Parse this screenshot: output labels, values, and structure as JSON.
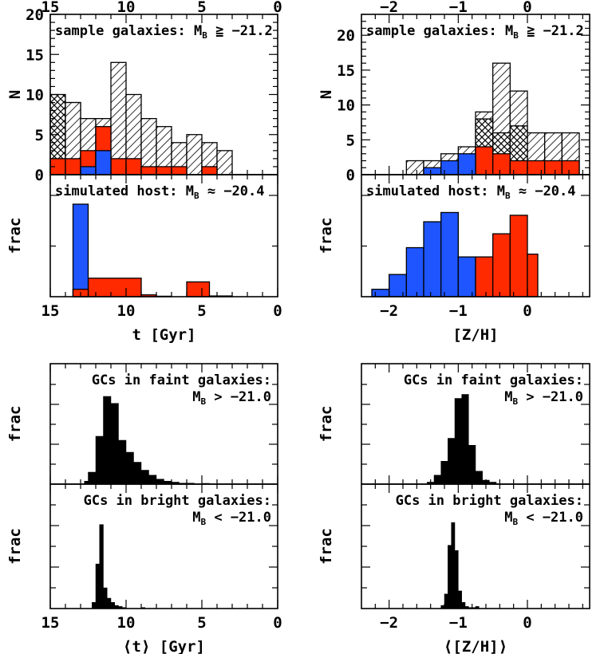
{
  "colors": {
    "red": "#ff2a00",
    "blue": "#1f55ff",
    "black": "#000000",
    "hatch": "#000000"
  },
  "chart_data": [
    {
      "id": "age-sample",
      "type": "bar",
      "ylabel": "N",
      "xlim": [
        15,
        0
      ],
      "ylim": [
        0,
        20
      ],
      "top_ticks": [
        "15",
        "10",
        "5",
        "0"
      ],
      "y_ticks": [
        "0",
        "5",
        "10",
        "15",
        "20"
      ],
      "annotation": {
        "text": "sample galaxies: M",
        "sub": "B",
        "rel": " ≧ −21.2"
      },
      "series": [
        {
          "name": "",
          "style": "crosshatch",
          "bin_edges": [
            15,
            14,
            13
          ],
          "values": [
            10,
            9
          ]
        },
        {
          "name": "",
          "style": "hatch",
          "bin_edges": [
            14,
            13,
            12,
            11,
            10,
            9,
            8,
            7,
            6,
            5,
            4,
            3
          ],
          "values": [
            9,
            7,
            7,
            14,
            10,
            7,
            6,
            4,
            5,
            4,
            3
          ]
        },
        {
          "name": "",
          "style": "red",
          "bin_edges": [
            15,
            14,
            13,
            12,
            11,
            10,
            9,
            8,
            7,
            6,
            5,
            4,
            3
          ],
          "values": [
            2,
            2,
            3,
            6,
            2,
            2,
            1,
            1,
            1,
            0,
            1,
            0
          ]
        },
        {
          "name": "",
          "style": "blue",
          "bin_edges": [
            13,
            12,
            11
          ],
          "values": [
            1,
            3
          ]
        }
      ]
    },
    {
      "id": "metal-sample",
      "type": "bar",
      "ylabel": "N",
      "xlim": [
        -2.4,
        0.9
      ],
      "ylim": [
        0,
        23
      ],
      "top_ticks": [
        "−2",
        "−1",
        "0"
      ],
      "y_ticks": [
        "0",
        "5",
        "10",
        "15",
        "20"
      ],
      "annotation": {
        "text": "sample galaxies: M",
        "sub": "B",
        "rel": " ≧ −21.2"
      },
      "series": [
        {
          "name": "",
          "style": "hatch",
          "bin_edges": [
            -1.75,
            -1.5,
            -1.25,
            -1.0,
            -0.75,
            -0.5,
            -0.25,
            0.0,
            0.25,
            0.5,
            0.75
          ],
          "values": [
            2,
            2,
            3,
            4,
            9,
            16,
            12,
            6,
            6,
            6
          ]
        },
        {
          "name": "",
          "style": "crosshatch",
          "bin_edges": [
            -0.75,
            -0.5,
            -0.25,
            0.0
          ],
          "values": [
            8,
            6,
            7
          ]
        },
        {
          "name": "",
          "style": "red",
          "bin_edges": [
            -0.75,
            -0.5,
            -0.25,
            0.0,
            0.25,
            0.5,
            0.75
          ],
          "values": [
            4,
            3,
            2,
            2,
            2,
            2
          ]
        },
        {
          "name": "",
          "style": "blue",
          "bin_edges": [
            -1.5,
            -1.25,
            -1.0,
            -0.75
          ],
          "values": [
            1,
            2,
            3
          ]
        }
      ]
    },
    {
      "id": "age-sim",
      "type": "bar",
      "ylabel": "frac",
      "xlabel": "t [Gyr]",
      "xlim": [
        15,
        0
      ],
      "ylim": [
        0,
        1
      ],
      "x_ticks": [
        "15",
        "10",
        "5",
        "0"
      ],
      "annotation": {
        "text": "simulated host: M",
        "sub": "B",
        "rel": " ≈ −20.4"
      },
      "series": [
        {
          "name": "",
          "style": "red",
          "bin_edges": [
            13.5,
            12.5,
            9,
            8,
            7,
            6.5,
            6,
            4.5,
            4,
            3
          ],
          "values": [
            0.08,
            0.2,
            0.02,
            0.005,
            0.0,
            0.0,
            0.16,
            0.008,
            0.008
          ]
        },
        {
          "name": "",
          "style": "blue",
          "bin_edges": [
            13.5,
            12.5
          ],
          "values": [
            1.0
          ]
        },
        {
          "name": "",
          "style": "redbase",
          "bin_edges": [
            13.5,
            12.5
          ],
          "values": [
            0.08
          ]
        }
      ]
    },
    {
      "id": "metal-sim",
      "type": "bar",
      "ylabel": "frac",
      "xlabel": "[Z/H]",
      "xlim": [
        -2.4,
        0.9
      ],
      "ylim": [
        0,
        1
      ],
      "x_ticks": [
        "−2",
        "−1",
        "0"
      ],
      "annotation": {
        "text": "simulated host: M",
        "sub": "B",
        "rel": " ≈ −20.4"
      },
      "series": [
        {
          "name": "",
          "style": "blue",
          "bin_edges": [
            -2.25,
            -2.0,
            -1.75,
            -1.5,
            -1.25,
            -1.0,
            -0.75
          ],
          "values": [
            0.08,
            0.24,
            0.53,
            0.81,
            0.91,
            0.43
          ]
        },
        {
          "name": "",
          "style": "red",
          "bin_edges": [
            -0.75,
            -0.5,
            -0.25,
            0.0,
            0.15
          ],
          "values": [
            0.43,
            0.68,
            0.88,
            0.46
          ]
        }
      ]
    },
    {
      "id": "age-faint",
      "type": "bar",
      "ylabel": "frac",
      "xlim": [
        15,
        0
      ],
      "ylim": [
        0,
        1
      ],
      "annotation": {
        "lines": [
          "GCs in faint galaxies:"
        ],
        "line2": {
          "text": "M",
          "sub": "B",
          "rel": " > −21.0"
        }
      },
      "series": [
        {
          "name": "",
          "style": "black",
          "bin_edges": [
            12.75,
            12.5,
            12.0,
            11.5,
            11.0,
            10.5,
            10.0,
            9.5,
            9.0,
            8.5,
            8.0,
            7.5,
            7.0,
            6.5,
            6.0,
            5.5,
            5.0,
            4.5
          ],
          "values": [
            0.03,
            0.12,
            0.48,
            0.88,
            0.81,
            0.44,
            0.32,
            0.22,
            0.14,
            0.09,
            0.05,
            0.03,
            0.02,
            0.01,
            0.01,
            0.0,
            0.008
          ]
        }
      ]
    },
    {
      "id": "metal-faint",
      "type": "bar",
      "ylabel": "frac",
      "xlim": [
        -2.4,
        0.9
      ],
      "ylim": [
        0,
        1
      ],
      "annotation": {
        "lines": [
          "GCs in faint galaxies:"
        ],
        "line2": {
          "text": "M",
          "sub": "B",
          "rel": " > −21.0"
        }
      },
      "series": [
        {
          "name": "",
          "style": "black",
          "bin_edges": [
            -1.45,
            -1.35,
            -1.25,
            -1.15,
            -1.05,
            -0.95,
            -0.85,
            -0.75,
            -0.65,
            -0.55,
            -0.45
          ],
          "values": [
            0.02,
            0.09,
            0.23,
            0.46,
            0.86,
            0.9,
            0.39,
            0.13,
            0.04,
            0.02
          ]
        }
      ]
    },
    {
      "id": "age-bright",
      "type": "bar",
      "ylabel": "frac",
      "xlabel": "⟨t⟩ [Gyr]",
      "xlim": [
        15,
        0
      ],
      "ylim": [
        0,
        1
      ],
      "x_ticks": [
        "15",
        "10",
        "5",
        "0"
      ],
      "annotation": {
        "lines": [
          "GCs in bright galaxies:"
        ],
        "line2": {
          "text": "M",
          "sub": "B",
          "rel": " < −21.0"
        }
      },
      "series": [
        {
          "name": "",
          "style": "black",
          "bin_edges": [
            12.25,
            12.0,
            11.75,
            11.5,
            11.25,
            11.0,
            10.75,
            10.5,
            10.25,
            10.0,
            9.75,
            9.5,
            9.25,
            9.0,
            8.75
          ],
          "values": [
            0.06,
            0.43,
            0.81,
            0.2,
            0.1,
            0.06,
            0.03,
            0.02,
            0.01,
            0.0,
            0.0,
            0.0,
            0.0,
            0.01
          ]
        }
      ]
    },
    {
      "id": "metal-bright",
      "type": "bar",
      "ylabel": "frac",
      "xlabel": "⟨[Z/H]⟩",
      "xlim": [
        -2.4,
        0.9
      ],
      "ylim": [
        0,
        1
      ],
      "x_ticks": [
        "−2",
        "−1",
        "0"
      ],
      "annotation": {
        "lines": [
          "GCs in bright galaxies:"
        ],
        "line2": {
          "text": "M",
          "sub": "B",
          "rel": " < −21.0"
        }
      },
      "series": [
        {
          "name": "",
          "style": "black",
          "bin_edges": [
            -1.25,
            -1.2,
            -1.15,
            -1.1,
            -1.05,
            -1.0,
            -0.95,
            -0.9,
            -0.85,
            -0.8,
            -0.75,
            -0.7
          ],
          "values": [
            0.03,
            0.14,
            0.61,
            0.83,
            0.56,
            0.17,
            0.06,
            0.02,
            0.01,
            0.01,
            0.02
          ]
        }
      ]
    }
  ]
}
